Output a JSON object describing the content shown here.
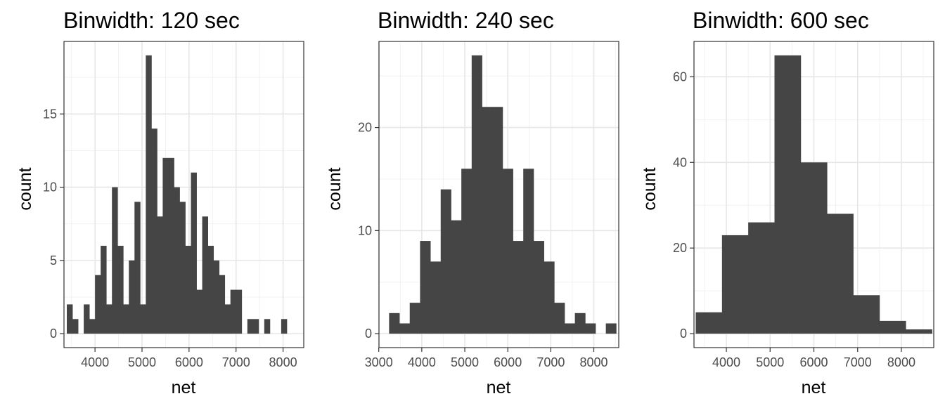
{
  "colors": {
    "bar_fill": "#454545",
    "background": "#ffffff",
    "panel_border": "#333333",
    "gridline": "#e6e6e6",
    "tick_label": "#4d4d4d"
  },
  "chart_data": [
    {
      "type": "bar",
      "title": "Binwidth: 120 sec",
      "xlabel": "net",
      "ylabel": "count",
      "binwidth": 120,
      "xlim": [
        3340,
        8440
      ],
      "ylim": [
        -0.95,
        19.95
      ],
      "x_ticks": [
        4000,
        5000,
        6000,
        7000,
        8000
      ],
      "y_ticks": [
        0,
        5,
        10,
        15
      ],
      "bins_start": 3400,
      "values": [
        2,
        1,
        0,
        2,
        1,
        4,
        6,
        2,
        10,
        6,
        2,
        5,
        9,
        2,
        19,
        14,
        8,
        12,
        12,
        10,
        9,
        6,
        11,
        3,
        8,
        6,
        5,
        4,
        2,
        3,
        3,
        0,
        1,
        1,
        0,
        1,
        0,
        0,
        1
      ],
      "grid": true,
      "legend": "none"
    },
    {
      "type": "bar",
      "title": "Binwidth: 240 sec",
      "xlabel": "net",
      "ylabel": "count",
      "binwidth": 240,
      "xlim": [
        3005,
        8580
      ],
      "ylim": [
        -1.35,
        28.35
      ],
      "x_ticks": [
        3000,
        4000,
        5000,
        6000,
        7000,
        8000
      ],
      "y_ticks": [
        0,
        10,
        20
      ],
      "bins_start": 3240,
      "values": [
        2,
        1,
        3,
        9,
        7,
        14,
        11,
        16,
        27,
        22,
        22,
        16,
        9,
        16,
        9,
        7,
        3,
        1,
        2,
        1,
        0,
        1
      ],
      "grid": true,
      "legend": "none"
    },
    {
      "type": "bar",
      "title": "Binwidth: 600 sec",
      "xlabel": "net",
      "ylabel": "count",
      "binwidth": 600,
      "xlim": [
        3260,
        8740
      ],
      "ylim": [
        -3.25,
        68.25
      ],
      "x_ticks": [
        4000,
        5000,
        6000,
        7000,
        8000
      ],
      "y_ticks": [
        0,
        20,
        40,
        60
      ],
      "bins_start": 3300,
      "values": [
        5,
        23,
        26,
        65,
        40,
        28,
        9,
        3,
        1
      ],
      "grid": true,
      "legend": "none"
    }
  ]
}
